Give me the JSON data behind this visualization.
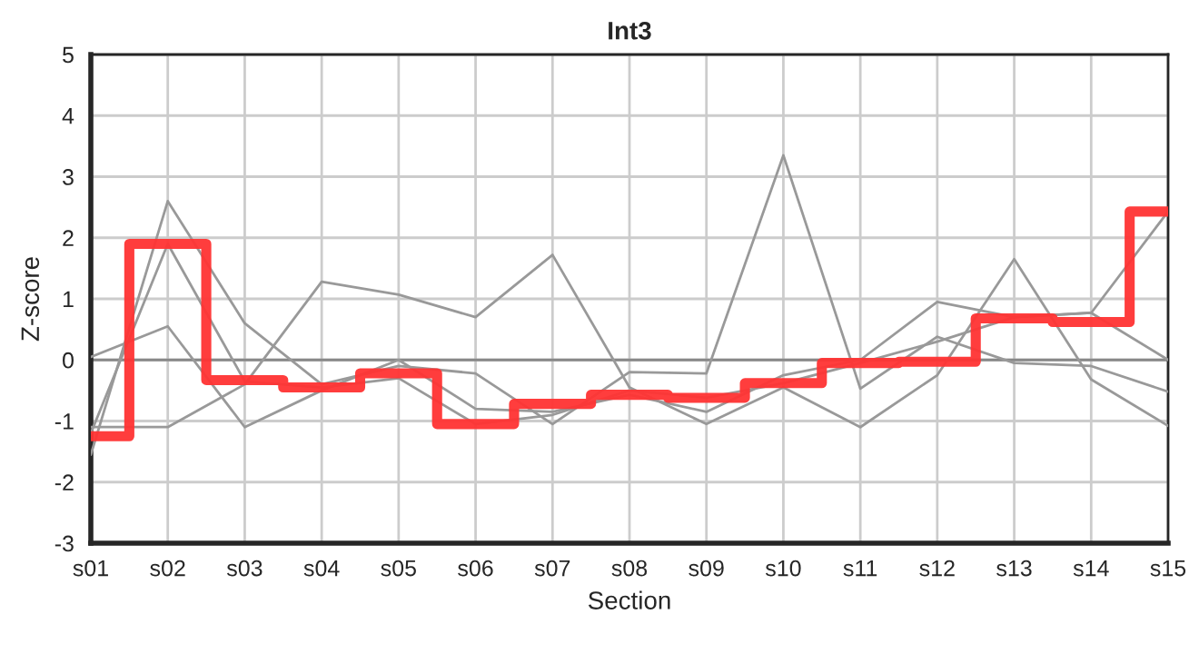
{
  "chart_data": {
    "type": "line",
    "title": "Int3",
    "xlabel": "Section",
    "ylabel": "Z-score",
    "categories": [
      "s01",
      "s02",
      "s03",
      "s04",
      "s05",
      "s06",
      "s07",
      "s08",
      "s09",
      "s10",
      "s11",
      "s12",
      "s13",
      "s14",
      "s15"
    ],
    "series": [
      {
        "color": "#999999",
        "values": [
          -1.55,
          2.6,
          0.6,
          -0.4,
          -0.1,
          -0.22,
          -1.05,
          -0.2,
          -0.22,
          3.35,
          -0.47,
          0.38,
          -0.05,
          -0.1,
          -0.52
        ]
      },
      {
        "color": "#999999",
        "values": [
          -1.1,
          -1.1,
          -0.4,
          1.28,
          1.07,
          0.7,
          1.72,
          -0.45,
          -1.05,
          -0.45,
          -1.1,
          -0.25,
          1.65,
          -0.32,
          -1.08
        ]
      },
      {
        "color": "#999999",
        "values": [
          0.05,
          0.55,
          -1.1,
          -0.5,
          0.0,
          -0.8,
          -0.85,
          -0.57,
          -0.85,
          -0.25,
          0.0,
          0.95,
          0.7,
          0.77,
          0.0
        ]
      },
      {
        "color": "#999999",
        "values": [
          -1.2,
          1.9,
          -0.35,
          -0.45,
          -0.3,
          -1.05,
          -0.9,
          -0.5,
          -0.62,
          -0.38,
          -0.05,
          0.3,
          0.7,
          0.77,
          2.43
        ]
      },
      {
        "type": "step",
        "color": "#ff3333",
        "values": [
          -1.25,
          1.9,
          -0.33,
          -0.45,
          -0.22,
          -1.05,
          -0.72,
          -0.57,
          -0.62,
          -0.38,
          -0.05,
          -0.03,
          0.68,
          0.62,
          2.43
        ]
      }
    ],
    "ylim": [
      -3,
      5
    ],
    "yticks": [
      -3,
      -2,
      -1,
      0,
      1,
      2,
      3,
      4,
      5
    ],
    "ref_lines": [
      {
        "axis": "y",
        "value": 0,
        "color": "#888888"
      }
    ],
    "grid": true,
    "legend": false
  }
}
